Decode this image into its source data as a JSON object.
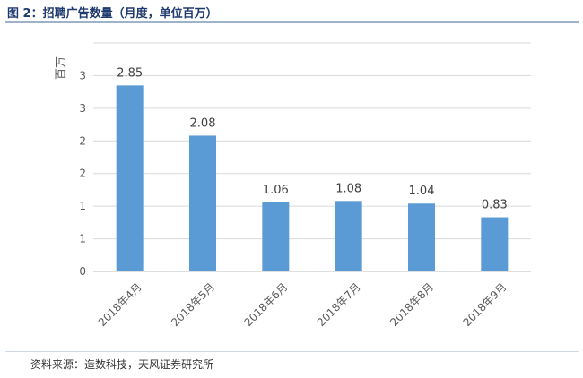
{
  "figure": {
    "title": "图 2：招聘广告数量（月度，单位百万）",
    "source": "资料来源：造数科技，天风证券研究所"
  },
  "colors": {
    "bar": "#5b9bd5",
    "gridline": "#d9d9d9",
    "axis_text": "#595959",
    "title": "#1f3a6e"
  },
  "chart_data": {
    "type": "bar",
    "title": "",
    "ylabel": "百万",
    "xlabel": "",
    "categories": [
      "2018年4月",
      "2018年5月",
      "2018年6月",
      "2018年7月",
      "2018年8月",
      "2018年9月"
    ],
    "values": [
      2.85,
      2.08,
      1.06,
      1.08,
      1.04,
      0.83
    ],
    "data_labels": [
      "2.85",
      "2.08",
      "1.06",
      "1.08",
      "1.04",
      "0.83"
    ],
    "ylim": [
      0,
      3.5
    ],
    "yticks": [
      0,
      0.5,
      1,
      1.5,
      2,
      2.5,
      3,
      3.5
    ],
    "ytick_labels": [
      "0",
      "1",
      "1",
      "2",
      "2",
      "3",
      "3",
      ""
    ],
    "grid": true,
    "legend": "none"
  }
}
